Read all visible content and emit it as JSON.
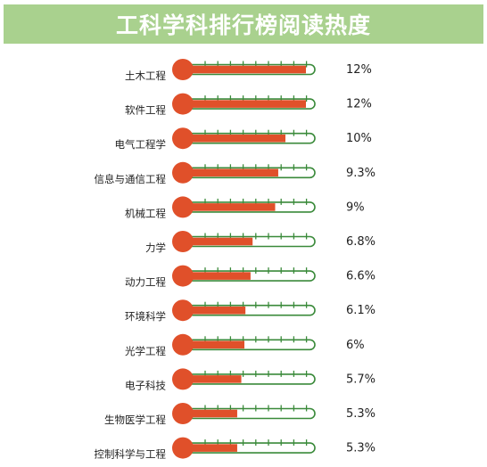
{
  "chart_data": {
    "type": "bar",
    "title": "工科学科排行榜阅读热度",
    "categories": [
      "土木工程",
      "软件工程",
      "电气工程学",
      "信息与通信工程",
      "机械工程",
      "力学",
      "动力工程",
      "环境科学",
      "光学工程",
      "电子科技",
      "生物医学工程",
      "控制科学与工程"
    ],
    "values": [
      12,
      12,
      10,
      9.3,
      9,
      6.8,
      6.6,
      6.1,
      6,
      5.7,
      5.3,
      5.3
    ],
    "value_labels": [
      "12%",
      "12%",
      "10%",
      "9.3%",
      "9%",
      "6.8%",
      "6.6%",
      "6.1%",
      "6%",
      "5.7%",
      "5.3%",
      "5.3%"
    ],
    "xlim": [
      0,
      12
    ],
    "colors": {
      "fill": "#e0502a",
      "outline": "#3a8a3a",
      "title_bg": "#a9d18e",
      "title_text": "#ffffff"
    }
  }
}
